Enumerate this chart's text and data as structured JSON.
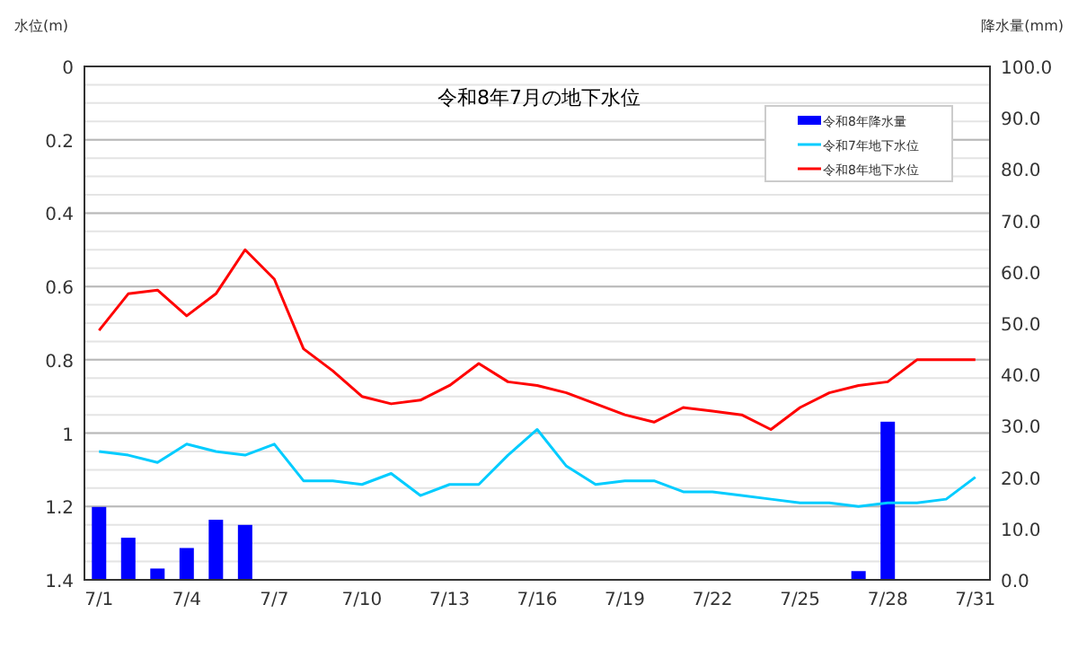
{
  "chart_data": {
    "type": "line",
    "title": "令和8年7月の地下水位",
    "ylabel": "水位(m)",
    "y2label": "降水量(mm)",
    "categories": [
      "7/1",
      null,
      null,
      "7/4",
      null,
      null,
      "7/7",
      null,
      null,
      "7/10",
      null,
      null,
      "7/13",
      null,
      null,
      "7/16",
      null,
      null,
      "7/19",
      null,
      null,
      "7/22",
      null,
      null,
      "7/25",
      null,
      null,
      "7/28",
      null,
      null,
      "7/31"
    ],
    "series": [
      {
        "name": "令和8年降水量",
        "type": "bar",
        "axis": "y2",
        "color": "#0000ff",
        "values": [
          14.2,
          8.2,
          2.2,
          6.2,
          11.7,
          10.7,
          0,
          0,
          0,
          0,
          0,
          0,
          0,
          0,
          0,
          0,
          0,
          0,
          0,
          0,
          0,
          0,
          0,
          0,
          0,
          0,
          1.7,
          30.8,
          0,
          0,
          0
        ]
      },
      {
        "name": "令和7年地下水位",
        "color": "#00ccff",
        "values": [
          1.05,
          1.06,
          1.08,
          1.03,
          1.05,
          1.06,
          1.03,
          1.13,
          1.13,
          1.14,
          1.11,
          1.17,
          1.14,
          1.14,
          1.06,
          0.99,
          1.09,
          1.14,
          1.13,
          1.13,
          1.16,
          1.16,
          1.17,
          1.18,
          1.19,
          1.19,
          1.2,
          1.19,
          1.19,
          1.18,
          1.12
        ]
      },
      {
        "name": "令和8年地下水位",
        "color": "#ff0000",
        "values": [
          0.72,
          0.62,
          0.61,
          0.68,
          0.62,
          0.5,
          0.58,
          0.77,
          0.83,
          0.9,
          0.92,
          0.91,
          0.87,
          0.81,
          0.86,
          0.87,
          0.89,
          0.92,
          0.95,
          0.97,
          0.93,
          0.94,
          0.95,
          0.99,
          0.93,
          0.89,
          0.87,
          0.86,
          0.8,
          0.8,
          0.8
        ]
      }
    ],
    "ylim": [
      1.4,
      0
    ],
    "yticks": [
      0,
      0.2,
      0.4,
      0.6,
      0.8,
      1,
      1.2,
      1.4
    ],
    "y2lim": [
      0,
      100
    ],
    "y2ticks": [
      {
        "value": 0,
        "label": "0.0"
      },
      {
        "value": 10,
        "label": "10.0"
      },
      {
        "value": 20,
        "label": "20.0"
      },
      {
        "value": 30,
        "label": "30.0"
      },
      {
        "value": 40,
        "label": "40.0"
      },
      {
        "value": 50,
        "label": "50.0"
      },
      {
        "value": 60,
        "label": "60.0"
      },
      {
        "value": 70,
        "label": "70.0"
      },
      {
        "value": 80,
        "label": "80.0"
      },
      {
        "value": 90,
        "label": "90.0"
      },
      {
        "value": 100,
        "label": "100.0"
      }
    ],
    "grid": "y",
    "legend": "top right"
  }
}
